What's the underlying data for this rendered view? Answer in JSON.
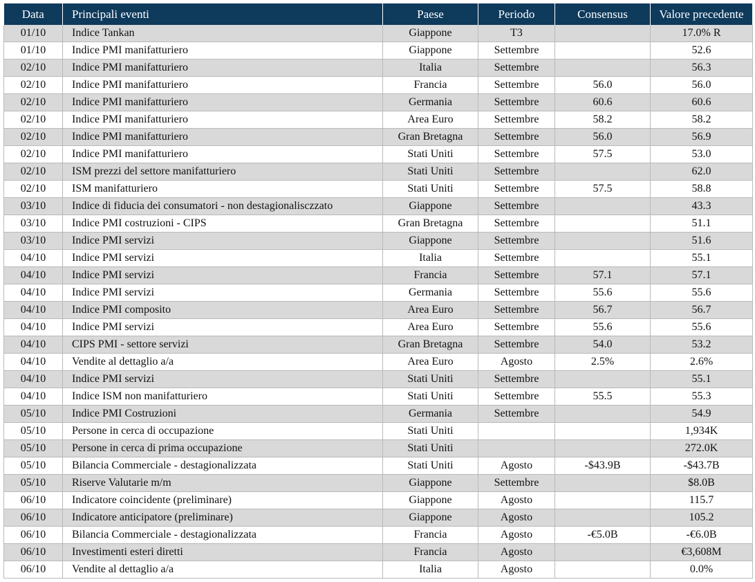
{
  "table": {
    "header": [
      "Data",
      "Principali eventi",
      "Paese",
      "Periodo",
      "Consensus",
      "Valore precedente"
    ],
    "rows": [
      [
        "01/10",
        "Indice Tankan",
        "Giappone",
        "T3",
        null,
        "17.0% R"
      ],
      [
        "01/10",
        "Indice PMI manifatturiero",
        "Giappone",
        "Settembre",
        null,
        "52.6"
      ],
      [
        "02/10",
        "Indice PMI manifatturiero",
        "Italia",
        "Settembre",
        null,
        "56.3"
      ],
      [
        "02/10",
        "Indice PMI manifatturiero",
        "Francia",
        "Settembre",
        "56.0",
        "56.0"
      ],
      [
        "02/10",
        "Indice PMI manifatturiero",
        "Germania",
        "Settembre",
        "60.6",
        "60.6"
      ],
      [
        "02/10",
        "Indice PMI manifatturiero",
        "Area Euro",
        "Settembre",
        "58.2",
        "58.2"
      ],
      [
        "02/10",
        "Indice PMI manifatturiero",
        "Gran Bretagna",
        "Settembre",
        "56.0",
        "56.9"
      ],
      [
        "02/10",
        "Indice PMI manifatturiero",
        "Stati Uniti",
        "Settembre",
        "57.5",
        "53.0"
      ],
      [
        "02/10",
        "ISM  prezzi del settore manifatturiero",
        "Stati Uniti",
        "Settembre",
        null,
        "62.0"
      ],
      [
        "02/10",
        "ISM manifatturiero",
        "Stati Uniti",
        "Settembre",
        "57.5",
        "58.8"
      ],
      [
        "03/10",
        "Indice di fiducia dei consumatori - non destagionalisczzato",
        "Giappone",
        "Settembre",
        null,
        "43.3"
      ],
      [
        "03/10",
        "Indice PMI costruzioni - CIPS",
        "Gran Bretagna",
        "Settembre",
        null,
        "51.1"
      ],
      [
        "03/10",
        "Indice PMI servizi",
        "Giappone",
        "Settembre",
        null,
        "51.6"
      ],
      [
        "04/10",
        "Indice PMI servizi",
        "Italia",
        "Settembre",
        null,
        "55.1"
      ],
      [
        "04/10",
        "Indice PMI servizi",
        "Francia",
        "Settembre",
        "57.1",
        "57.1"
      ],
      [
        "04/10",
        "Indice PMI servizi",
        "Germania",
        "Settembre",
        "55.6",
        "55.6"
      ],
      [
        "04/10",
        "Indice PMI composito",
        "Area Euro",
        "Settembre",
        "56.7",
        "56.7"
      ],
      [
        "04/10",
        "Indice PMI servizi",
        "Area Euro",
        "Settembre",
        "55.6",
        "55.6"
      ],
      [
        "04/10",
        "CIPS PMI - settore servizi",
        "Gran Bretagna",
        "Settembre",
        "54.0",
        "53.2"
      ],
      [
        "04/10",
        "Vendite al dettaglio a/a",
        "Area Euro",
        "Agosto",
        "2.5%",
        "2.6%"
      ],
      [
        "04/10",
        "Indice PMI servizi",
        "Stati Uniti",
        "Settembre",
        null,
        "55.1"
      ],
      [
        "04/10",
        "Indice ISM non manifatturiero",
        "Stati Uniti",
        "Settembre",
        "55.5",
        "55.3"
      ],
      [
        "05/10",
        "Indice PMI  Costruzioni",
        "Germania",
        "Settembre",
        null,
        "54.9"
      ],
      [
        "05/10",
        "Persone in cerca di occupazione",
        "Stati Uniti",
        null,
        null,
        "1,934K"
      ],
      [
        "05/10",
        "Persone in cerca di prima occupazione",
        "Stati Uniti",
        null,
        null,
        "272.0K"
      ],
      [
        "05/10",
        "Bilancia Commerciale - destagionalizzata",
        "Stati Uniti",
        "Agosto",
        "-$43.9B",
        "-$43.7B"
      ],
      [
        "05/10",
        "Riserve Valutarie m/m",
        "Giappone",
        "Settembre",
        null,
        "$8.0B"
      ],
      [
        "06/10",
        "Indicatore coincidente (preliminare)",
        "Giappone",
        "Agosto",
        null,
        "115.7"
      ],
      [
        "06/10",
        "Indicatore anticipatore (preliminare)",
        "Giappone",
        "Agosto",
        null,
        "105.2"
      ],
      [
        "06/10",
        "Bilancia Commerciale - destagionalizzata",
        "Francia",
        "Agosto",
        "-€5.0B",
        "-€6.0B"
      ],
      [
        "06/10",
        "Investimenti esteri diretti",
        "Francia",
        "Agosto",
        null,
        "€3,608M"
      ],
      [
        "06/10",
        "Vendite al dettaglio a/a",
        "Italia",
        "Agosto",
        null,
        "0.0%"
      ]
    ]
  }
}
